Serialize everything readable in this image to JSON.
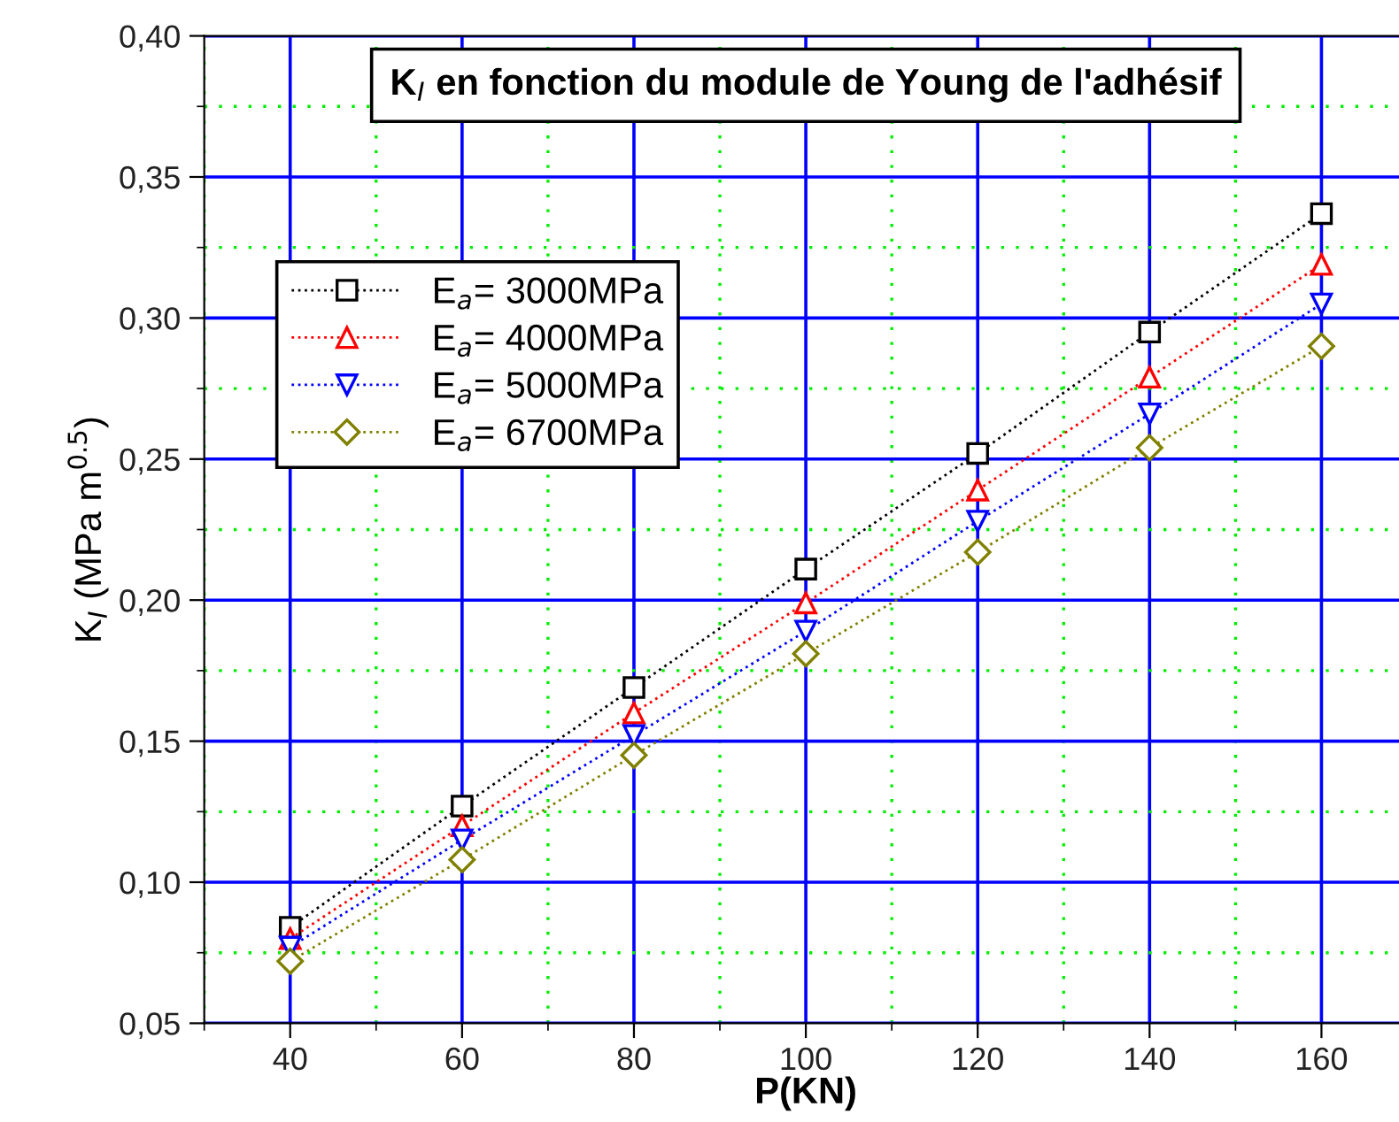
{
  "chart_data": {
    "type": "line",
    "title": "K$_{I}$ en fonction du module de Young de l'adhésif",
    "xlabel": "P(KN)",
    "ylabel": "K$_{I}$ (MPa m$^{0.5}$)",
    "x": [
      40,
      60,
      80,
      100,
      120,
      140,
      160
    ],
    "series": [
      {
        "name": "E$_{a}$= 3000MPa",
        "color": "#000000",
        "marker": "square",
        "values": [
          0.084,
          0.127,
          0.169,
          0.211,
          0.252,
          0.295,
          0.337
        ]
      },
      {
        "name": "E$_{a}$= 4000MPa",
        "color": "#ff0000",
        "marker": "triangle",
        "values": [
          0.08,
          0.12,
          0.16,
          0.199,
          0.239,
          0.279,
          0.319
        ]
      },
      {
        "name": "E$_{a}$= 5000MPa",
        "color": "#0000ff",
        "marker": "triangle_down",
        "values": [
          0.077,
          0.115,
          0.152,
          0.189,
          0.228,
          0.266,
          0.305
        ]
      },
      {
        "name": "E$_{a}$= 6700MPa",
        "color": "#808000",
        "marker": "diamond",
        "values": [
          0.072,
          0.108,
          0.145,
          0.181,
          0.217,
          0.254,
          0.29
        ]
      }
    ],
    "xlim": [
      30,
      170
    ],
    "xticks": [
      {
        "value": 30,
        "label": null
      },
      40,
      {
        "value": 50,
        "label": null
      },
      60,
      {
        "value": 70,
        "label": null
      },
      80,
      {
        "value": 90,
        "label": null
      },
      100,
      {
        "value": 110,
        "label": null
      },
      120,
      {
        "value": 130,
        "label": null
      },
      140,
      {
        "value": 150,
        "label": null
      },
      160,
      {
        "value": 170,
        "label": null
      }
    ],
    "ylim": [
      0.05,
      0.4
    ],
    "yticks": [
      {
        "value": 0.05,
        "label": "0,05"
      },
      {
        "value": 0.075,
        "label": null
      },
      {
        "value": 0.1,
        "label": "0,10"
      },
      {
        "value": 0.125,
        "label": null
      },
      {
        "value": 0.15,
        "label": "0,15"
      },
      {
        "value": 0.175,
        "label": null
      },
      {
        "value": 0.2,
        "label": "0,20"
      },
      {
        "value": 0.225,
        "label": null
      },
      {
        "value": 0.25,
        "label": "0,25"
      },
      {
        "value": 0.275,
        "label": null
      },
      {
        "value": 0.3,
        "label": "0,30"
      },
      {
        "value": 0.325,
        "label": null
      },
      {
        "value": 0.35,
        "label": "0,35"
      },
      {
        "value": 0.375,
        "label": null
      },
      {
        "value": 0.4,
        "label": "0,40"
      }
    ],
    "grid": true,
    "legend": "top left",
    "line_style": "dotted"
  }
}
